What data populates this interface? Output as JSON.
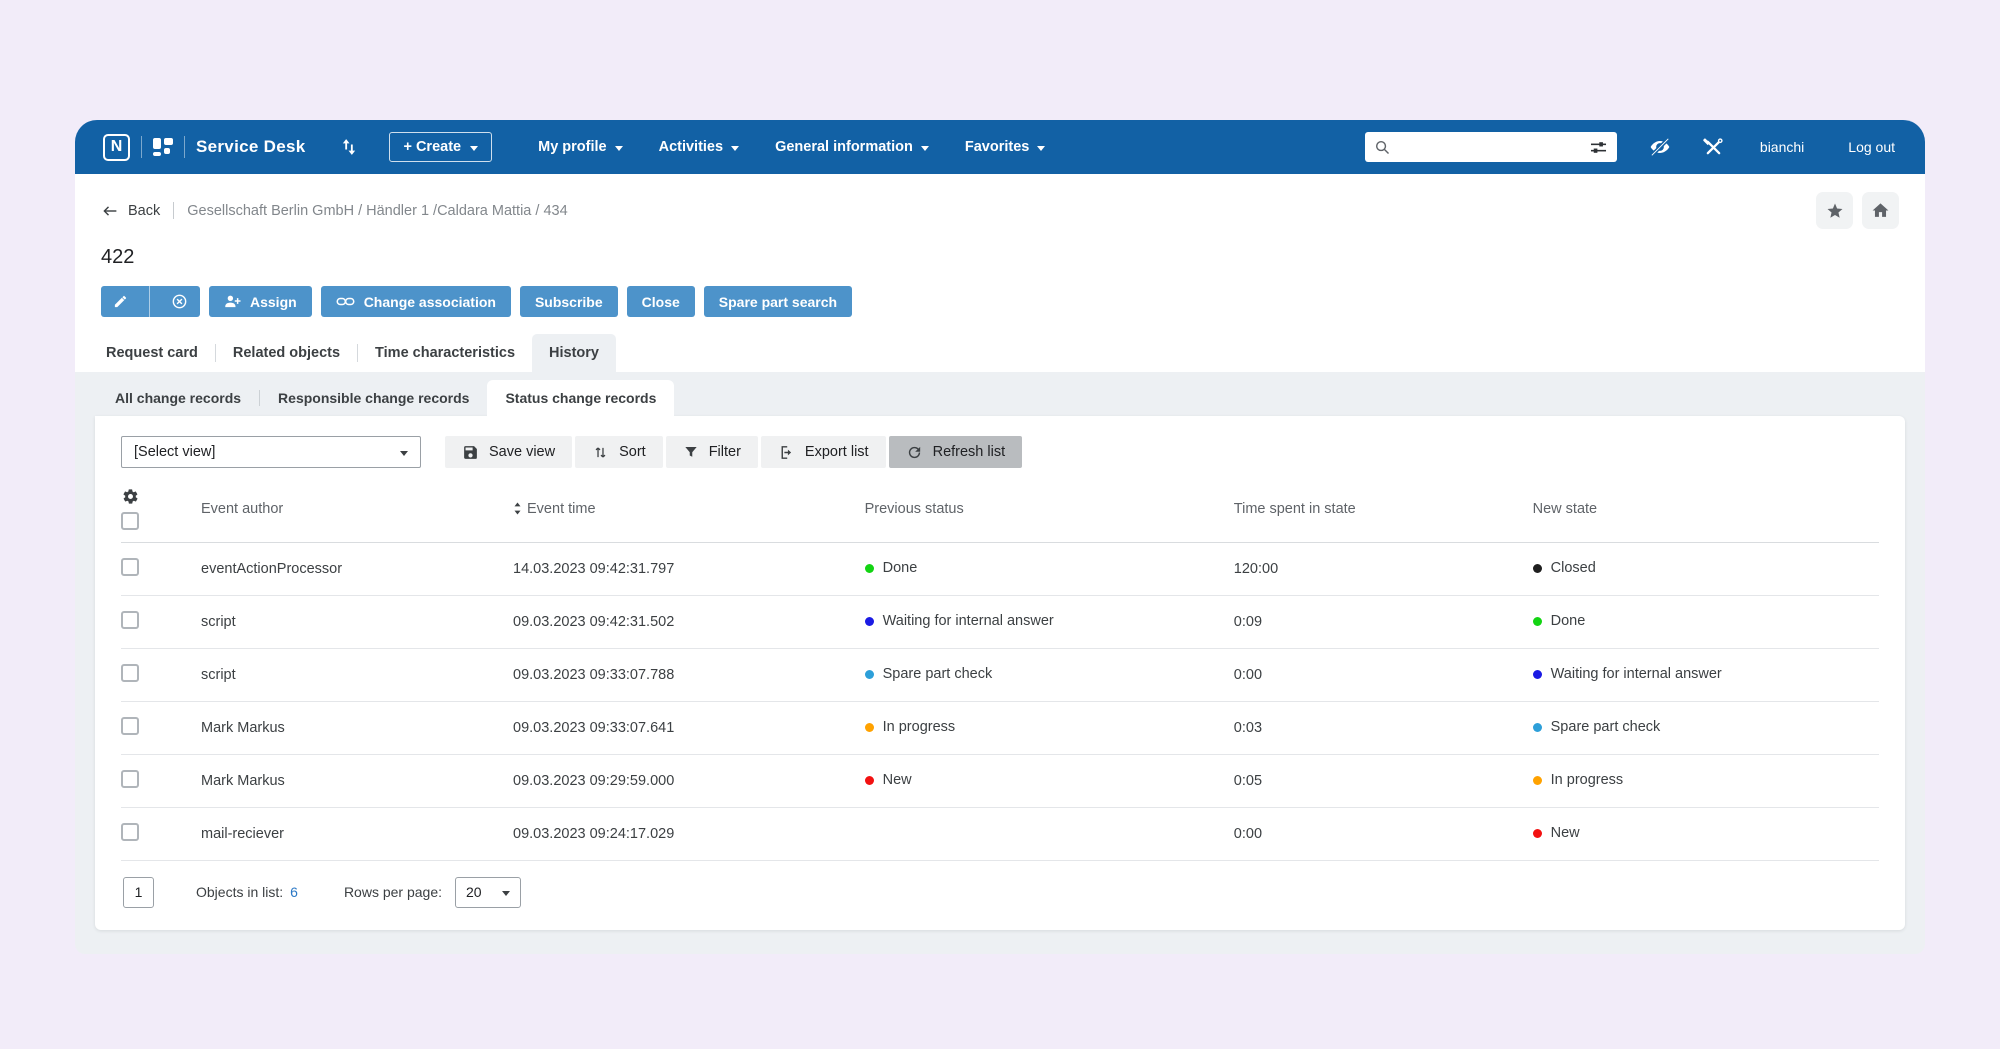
{
  "colors": {
    "nav_blue": "#1261a5",
    "action_blue": "#4d93ca",
    "link_blue": "#2b78c5"
  },
  "nav": {
    "logo_letter": "N",
    "brand": "Service Desk",
    "create": "+ Create",
    "menu": [
      "My profile",
      "Activities",
      "General information",
      "Favorites"
    ],
    "search_value": "",
    "username": "bianchi",
    "logout": "Log out"
  },
  "breadcrumb": {
    "back": "Back",
    "path": "Gesellschaft Berlin GmbH / Händler 1 /Caldara Mattia / 434"
  },
  "title": "422",
  "actions": [
    {
      "label": "Assign",
      "icon": "person-plus-icon"
    },
    {
      "label": "Change association",
      "icon": "link-icon"
    },
    {
      "label": "Subscribe"
    },
    {
      "label": "Close"
    },
    {
      "label": "Spare part search"
    }
  ],
  "tabs": [
    {
      "label": "Request card",
      "active": false
    },
    {
      "label": "Related objects",
      "active": false
    },
    {
      "label": "Time characteristics",
      "active": false
    },
    {
      "label": "History",
      "active": true
    }
  ],
  "subtabs": [
    {
      "label": "All change records",
      "active": false
    },
    {
      "label": "Responsible change records",
      "active": false
    },
    {
      "label": "Status change records",
      "active": true
    }
  ],
  "toolbar": {
    "select_view": "[Select view]",
    "save_view": "Save view",
    "sort": "Sort",
    "filter": "Filter",
    "export_list": "Export list",
    "refresh_list": "Refresh list"
  },
  "table": {
    "columns": [
      "Event author",
      "Event time",
      "Previous status",
      "Time spent in state",
      "New state"
    ],
    "rows": [
      {
        "author": "eventActionProcessor",
        "time": "14.03.2023 09:42:31.797",
        "prev_status": {
          "label": "Done",
          "color": "#13d413"
        },
        "time_in_state": "120:00",
        "new_status": {
          "label": "Closed",
          "color": "#1f1f1f"
        }
      },
      {
        "author": "script",
        "time": "09.03.2023 09:42:31.502",
        "prev_status": {
          "label": "Waiting for internal answer",
          "color": "#1b1be4"
        },
        "time_in_state": "0:09",
        "new_status": {
          "label": "Done",
          "color": "#13d413"
        }
      },
      {
        "author": "script",
        "time": "09.03.2023 09:33:07.788",
        "prev_status": {
          "label": "Spare part check",
          "color": "#2d9fd9"
        },
        "time_in_state": "0:00",
        "new_status": {
          "label": "Waiting for internal answer",
          "color": "#1b1be4"
        }
      },
      {
        "author": "Mark Markus",
        "time": "09.03.2023 09:33:07.641",
        "prev_status": {
          "label": "In progress",
          "color": "#ffa200"
        },
        "time_in_state": "0:03",
        "new_status": {
          "label": "Spare part check",
          "color": "#2d9fd9"
        }
      },
      {
        "author": "Mark Markus",
        "time": "09.03.2023 09:29:59.000",
        "prev_status": {
          "label": "New",
          "color": "#f21111"
        },
        "time_in_state": "0:05",
        "new_status": {
          "label": "In progress",
          "color": "#ffa200"
        }
      },
      {
        "author": "mail-reciever",
        "time": "09.03.2023 09:24:17.029",
        "prev_status": null,
        "time_in_state": "0:00",
        "new_status": {
          "label": "New",
          "color": "#f21111"
        }
      }
    ]
  },
  "footer": {
    "page": "1",
    "objects_label": "Objects in list:",
    "objects_count": "6",
    "rows_label": "Rows per page:",
    "rows_value": "20"
  }
}
